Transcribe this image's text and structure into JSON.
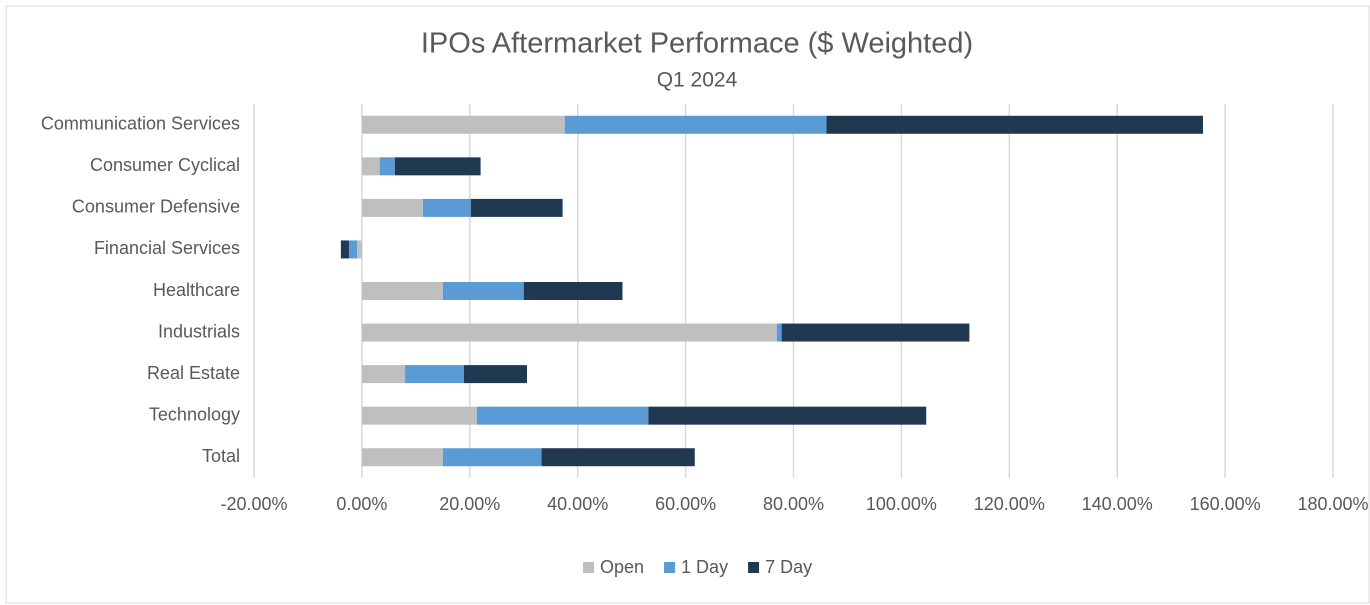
{
  "chart_data": {
    "type": "bar",
    "orientation": "horizontal",
    "stacked": true,
    "title": "IPOs Aftermarket Performace ($ Weighted)",
    "subtitle": "Q1 2024",
    "categories": [
      "Communication Services",
      "Consumer Cyclical",
      "Consumer Defensive",
      "Financial Services",
      "Healthcare",
      "Industrials",
      "Real Estate",
      "Technology",
      "Total"
    ],
    "series": [
      {
        "name": "Open",
        "color": "#bfbfbf",
        "values": [
          37.6,
          3.3,
          11.3,
          -0.9,
          15.0,
          76.9,
          8.0,
          21.3,
          15.0
        ]
      },
      {
        "name": "1 Day",
        "color": "#5b9bd5",
        "values": [
          48.5,
          2.8,
          8.9,
          -1.5,
          15.0,
          0.9,
          10.9,
          31.8,
          18.3
        ]
      },
      {
        "name": "7 Day",
        "color": "#203850",
        "values": [
          69.8,
          15.9,
          17.0,
          -1.5,
          18.3,
          34.8,
          11.7,
          51.5,
          28.4
        ]
      }
    ],
    "xlim": [
      -20,
      180
    ],
    "xticks": [
      {
        "value": -20,
        "label": "-20.00%"
      },
      {
        "value": 0,
        "label": "0.00%"
      },
      {
        "value": 20,
        "label": "20.00%"
      },
      {
        "value": 40,
        "label": "40.00%"
      },
      {
        "value": 60,
        "label": "60.00%"
      },
      {
        "value": 80,
        "label": "80.00%"
      },
      {
        "value": 100,
        "label": "100.00%"
      },
      {
        "value": 120,
        "label": "120.00%"
      },
      {
        "value": 140,
        "label": "140.00%"
      },
      {
        "value": 160,
        "label": "160.00%"
      },
      {
        "value": 180,
        "label": "180.00%"
      }
    ],
    "grid": true,
    "legend": "bottom"
  }
}
